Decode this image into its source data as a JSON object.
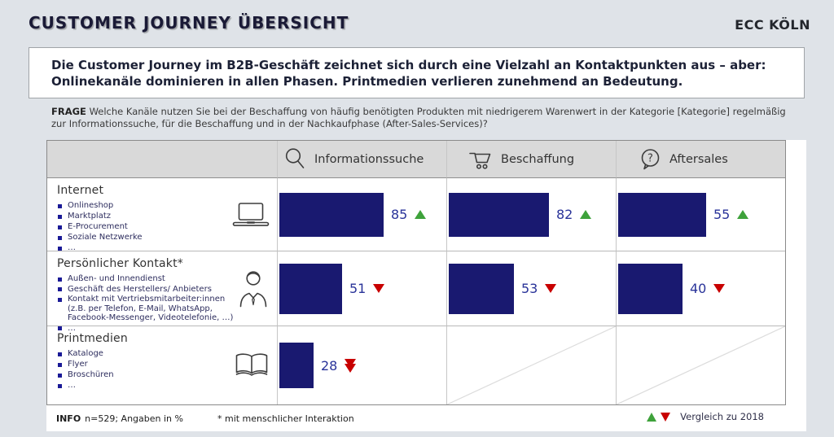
{
  "header": {
    "title": "CUSTOMER JOURNEY ÜBERSICHT",
    "logo": "ECC KÖLN"
  },
  "headline": {
    "lines": [
      "Die Customer Journey im B2B-Geschäft zeichnet sich durch eine Vielzahl an Kontaktpunkten aus – aber:",
      "Onlinekanäle dominieren in allen Phasen. Printmedien verlieren zunehmend an Bedeutung."
    ]
  },
  "question": {
    "label": "FRAGE",
    "text": "Welche Kanäle nutzen Sie bei der Beschaffung von häufig benötigten Produkten mit niedrigerem Warenwert in der Kategorie [Kategorie] regelmäßig zur Informationssuche, für die Beschaffung und in der Nachkaufphase (After-Sales-Services)?"
  },
  "table": {
    "columns": [
      {
        "label": "Informationssuche",
        "icon": "magnifier-icon"
      },
      {
        "label": "Beschaffung",
        "icon": "cart-icon"
      },
      {
        "label": "Aftersales",
        "icon": "question-bubble-icon"
      }
    ],
    "bar_scales": [
      1.5,
      1.5,
      1.97
    ],
    "rows": [
      {
        "title": "Internet",
        "icon": "laptop-icon",
        "items": [
          "Onlineshop",
          "Marktplatz",
          "E-Procurement",
          "Soziale Netzwerke",
          "…"
        ],
        "cells": [
          {
            "value": 85,
            "trend": "up"
          },
          {
            "value": 82,
            "trend": "up"
          },
          {
            "value": 55,
            "trend": "up"
          }
        ]
      },
      {
        "title": "Persönlicher Kontakt*",
        "icon": "person-icon",
        "items": [
          "Außen- und Innendienst",
          "Geschäft des Herstellers/ Anbieters",
          "Kontakt mit Vertriebsmitarbeiter:innen (z.B. per Telefon, E-Mail, WhatsApp, Facebook-Messenger, Videotelefonie, …)",
          "…"
        ],
        "cells": [
          {
            "value": 51,
            "trend": "down"
          },
          {
            "value": 53,
            "trend": "down"
          },
          {
            "value": 40,
            "trend": "down"
          }
        ]
      },
      {
        "title": "Printmedien",
        "icon": "book-icon",
        "items": [
          "Kataloge",
          "Flyer",
          "Broschüren",
          "…"
        ],
        "cells": [
          {
            "value": 28,
            "trend": "down2"
          },
          {
            "empty": true
          },
          {
            "empty": true
          }
        ]
      }
    ]
  },
  "footer": {
    "info_label": "INFO",
    "info_text": "n=529; Angaben in %",
    "footnote": "* mit menschlicher Interaktion",
    "legend_text": "Vergleich zu 2018"
  },
  "colors": {
    "bar": "#191970",
    "up": "#3ea23b",
    "down": "#c80000",
    "value_text": "#293399"
  },
  "chart_data": {
    "type": "bar",
    "title": "Customer Journey Übersicht",
    "unit": "%",
    "sample_size": "n=529",
    "categories": [
      "Informationssuche",
      "Beschaffung",
      "Aftersales"
    ],
    "series": [
      {
        "name": "Internet",
        "values": [
          85,
          82,
          55
        ],
        "trend_vs_2018": [
          "up",
          "up",
          "up"
        ]
      },
      {
        "name": "Persönlicher Kontakt*",
        "values": [
          51,
          53,
          40
        ],
        "trend_vs_2018": [
          "down",
          "down",
          "down"
        ]
      },
      {
        "name": "Printmedien",
        "values": [
          28,
          null,
          null
        ],
        "trend_vs_2018": [
          "strong-down",
          null,
          null
        ]
      }
    ],
    "legend": "▲▼ Vergleich zu 2018",
    "xlim": [
      0,
      100
    ],
    "notes": "* mit menschlicher Interaktion; Angaben in %"
  }
}
